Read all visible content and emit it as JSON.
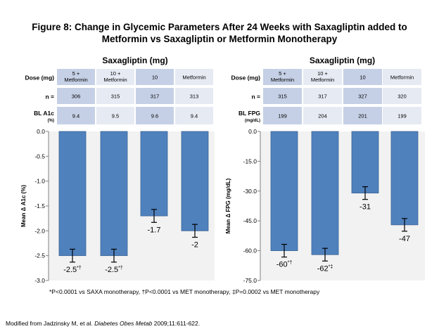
{
  "title_line1": "Figure 8: Change in Glycemic Parameters After 24 Weeks with Saxagliptin added to",
  "title_line2": "Metformin vs Saxagliptin or Metformin Monotherapy",
  "footnote": "*P<0.0001 vs SAXA monotherapy, †P<0.0001 vs MET monotherapy, ‡P=0.0002 vs MET monotherapy",
  "source": {
    "prefix": "Modified from Jadzinsky M, et al.",
    "journal": "Diabetes Obes Metab",
    "suffix": "2009;11:611-622."
  },
  "colors": {
    "bar": "#4f81bd",
    "bar_edge": "#3a6496",
    "plot_bg": "#f2f2f2",
    "table_dark": "#c5d0e6",
    "table_light": "#e6eaf3"
  },
  "chart_data": [
    {
      "type": "bar",
      "header": "Saxagliptin (mg)",
      "table": [
        {
          "label": "Dose (mg)",
          "sublabel": "",
          "cells": [
            "5 +\nMetformin",
            "10 +\nMetformin",
            "10",
            "Metformin"
          ]
        },
        {
          "label": "n =",
          "sublabel": "",
          "cells": [
            "306",
            "315",
            "317",
            "313"
          ]
        },
        {
          "label": "BL A1c",
          "sublabel": "(%)",
          "cells": [
            "9.4",
            "9.5",
            "9.6",
            "9.4"
          ]
        }
      ],
      "categories": [
        "5 + Metformin",
        "10 + Metformin",
        "10",
        "Metformin"
      ],
      "values": [
        -2.5,
        -2.5,
        -1.7,
        -2.0
      ],
      "errors": [
        0.13,
        0.13,
        0.13,
        0.13
      ],
      "labels": [
        "-2.5",
        "-2.5",
        "-1.7",
        "-2"
      ],
      "label_marks": [
        "*†",
        "*†",
        "",
        ""
      ],
      "ylabel": "Mean Δ A1c (%)",
      "ylim": [
        -3.0,
        0.0
      ],
      "yticks": [
        "0.0",
        "-0.5",
        "-1.0",
        "-1.5",
        "-2.0",
        "-2.5",
        "-3.0"
      ],
      "ytick_values": [
        0.0,
        -0.5,
        -1.0,
        -1.5,
        -2.0,
        -2.5,
        -3.0
      ],
      "grid": false
    },
    {
      "type": "bar",
      "header": "Saxagliptin (mg)",
      "table": [
        {
          "label": "Dose (mg)",
          "sublabel": "",
          "cells": [
            "5 +\nMetformin",
            "10 +\nMetformin",
            "10",
            "Metformin"
          ]
        },
        {
          "label": "n =",
          "sublabel": "",
          "cells": [
            "315",
            "317",
            "327",
            "320"
          ]
        },
        {
          "label": "BL FPG",
          "sublabel": "(mg/dL)",
          "cells": [
            "199",
            "204",
            "201",
            "199"
          ]
        }
      ],
      "categories": [
        "5 + Metformin",
        "10 + Metformin",
        "10",
        "Metformin"
      ],
      "values": [
        -60,
        -62,
        -31,
        -47
      ],
      "errors": [
        3.2,
        3.2,
        3.2,
        3.2
      ],
      "labels": [
        "-60",
        "-62",
        "-31",
        "-47"
      ],
      "label_marks": [
        "*†",
        "*‡",
        "",
        ""
      ],
      "ylabel": "Mean Δ FPG (mg/dL)",
      "ylim": [
        -75.0,
        0.0
      ],
      "yticks": [
        "0.0",
        "-15.0",
        "-30.0",
        "-45.0",
        "-60.0",
        "-75.0"
      ],
      "ytick_values": [
        0.0,
        -15.0,
        -30.0,
        -45.0,
        -60.0,
        -75.0
      ],
      "grid": false
    }
  ]
}
